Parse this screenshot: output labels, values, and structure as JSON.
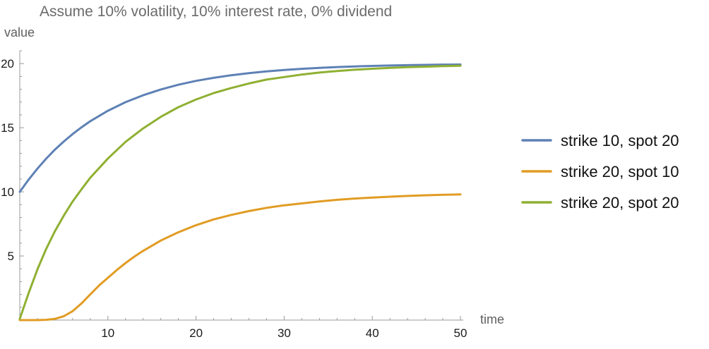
{
  "chart_data": {
    "type": "line",
    "title": "Assume 10% volatility, 10% interest rate, 0% dividend",
    "xlabel": "time",
    "ylabel": "value",
    "xlim": [
      0,
      50
    ],
    "ylim": [
      0,
      21
    ],
    "x_ticks": [
      10,
      20,
      30,
      40,
      50
    ],
    "y_ticks": [
      5,
      10,
      15,
      20
    ],
    "grid": false,
    "legend_position": "right",
    "series": [
      {
        "name": "strike 10, spot 20",
        "color": "#5e81b5",
        "x": [
          0,
          1,
          2,
          3,
          4,
          5,
          6,
          7,
          8,
          10,
          12,
          14,
          16,
          18,
          20,
          22,
          24,
          26,
          28,
          30,
          32,
          34,
          36,
          38,
          40,
          42,
          44,
          46,
          48,
          50
        ],
        "y": [
          10.0,
          10.95,
          11.81,
          12.59,
          13.3,
          13.93,
          14.51,
          15.03,
          15.51,
          16.32,
          16.99,
          17.53,
          17.98,
          18.35,
          18.65,
          18.89,
          19.09,
          19.26,
          19.39,
          19.5,
          19.59,
          19.67,
          19.73,
          19.78,
          19.82,
          19.85,
          19.88,
          19.9,
          19.92,
          19.93
        ]
      },
      {
        "name": "strike 20, spot 10",
        "color": "#e19c24",
        "x": [
          0,
          1,
          2,
          3,
          4,
          5,
          6,
          7,
          8,
          9,
          10,
          11,
          12,
          13,
          14,
          16,
          18,
          20,
          22,
          24,
          26,
          28,
          30,
          32,
          34,
          36,
          38,
          40,
          42,
          44,
          46,
          48,
          50
        ],
        "y": [
          0,
          0,
          0,
          0.02,
          0.1,
          0.3,
          0.7,
          1.3,
          2.0,
          2.7,
          3.3,
          3.9,
          4.45,
          4.95,
          5.4,
          6.2,
          6.85,
          7.4,
          7.85,
          8.2,
          8.5,
          8.75,
          8.95,
          9.1,
          9.25,
          9.38,
          9.48,
          9.55,
          9.62,
          9.68,
          9.73,
          9.77,
          9.8
        ]
      },
      {
        "name": "strike 20, spot 20",
        "color": "#8fb032",
        "x": [
          0,
          1,
          2,
          3,
          4,
          5,
          6,
          7,
          8,
          10,
          12,
          14,
          16,
          18,
          20,
          22,
          24,
          26,
          28,
          30,
          32,
          34,
          36,
          38,
          40,
          42,
          44,
          46,
          48,
          50
        ],
        "y": [
          0.1,
          2.1,
          3.95,
          5.55,
          6.95,
          8.15,
          9.25,
          10.2,
          11.1,
          12.6,
          13.9,
          14.95,
          15.85,
          16.6,
          17.2,
          17.7,
          18.1,
          18.45,
          18.75,
          18.95,
          19.15,
          19.3,
          19.42,
          19.52,
          19.6,
          19.67,
          19.72,
          19.76,
          19.8,
          19.83
        ]
      }
    ]
  }
}
